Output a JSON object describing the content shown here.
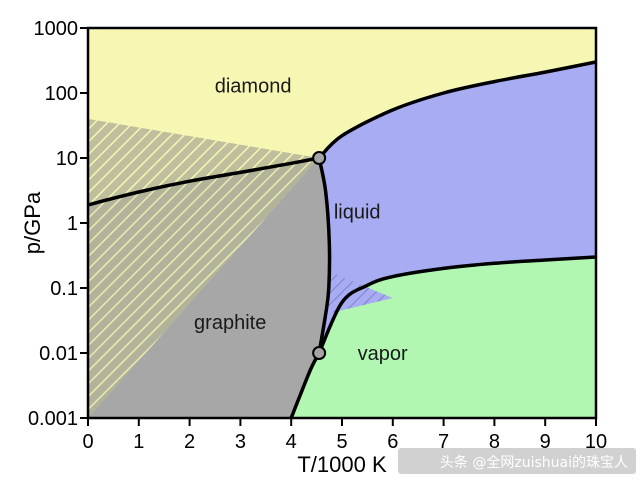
{
  "chart_data": {
    "type": "phase-diagram",
    "title": "",
    "xlabel": "T/1000 K",
    "ylabel": "p/GPa",
    "xlim": [
      0,
      10
    ],
    "ylim": [
      0.001,
      1000
    ],
    "yscale": "log",
    "xticks": [
      0,
      1,
      2,
      3,
      4,
      5,
      6,
      7,
      8,
      9,
      10
    ],
    "yticks": [
      {
        "value": 0.001,
        "label": "0.001"
      },
      {
        "value": 0.01,
        "label": "0.01"
      },
      {
        "value": 0.1,
        "label": "0.1"
      },
      {
        "value": 1,
        "label": "1"
      },
      {
        "value": 10,
        "label": "10"
      },
      {
        "value": 100,
        "label": "100"
      },
      {
        "value": 1000,
        "label": "1000"
      }
    ],
    "grid": false,
    "regions": [
      {
        "name": "diamond",
        "label_at": [
          3.25,
          130
        ],
        "color": "#f6f7b2"
      },
      {
        "name": "liquid",
        "label_at": [
          5.3,
          1.5
        ],
        "color": "#a8acf2"
      },
      {
        "name": "graphite",
        "label_at": [
          2.8,
          0.03
        ],
        "color": "#a7a7a7"
      },
      {
        "name": "vapor",
        "label_at": [
          5.8,
          0.01
        ],
        "color": "#b1f7b1"
      }
    ],
    "triple_points": [
      {
        "x": 4.55,
        "y": 10
      },
      {
        "x": 4.55,
        "y": 0.01
      }
    ],
    "boundaries": {
      "graphite_diamond": [
        [
          0,
          1.9
        ],
        [
          1.0,
          3.0
        ],
        [
          2.0,
          4.4
        ],
        [
          3.0,
          6.0
        ],
        [
          4.0,
          8.3
        ],
        [
          4.55,
          10
        ]
      ],
      "diamond_liquid": [
        [
          4.55,
          10
        ],
        [
          5.0,
          22
        ],
        [
          6.0,
          55
        ],
        [
          7.0,
          100
        ],
        [
          8.0,
          150
        ],
        [
          9.0,
          210
        ],
        [
          10.0,
          300
        ]
      ],
      "graphite_liquid": [
        [
          4.55,
          10
        ],
        [
          4.68,
          3
        ],
        [
          4.75,
          0.5
        ],
        [
          4.74,
          0.1
        ],
        [
          4.68,
          0.04
        ],
        [
          4.55,
          0.01
        ]
      ],
      "liquid_vapor": [
        [
          4.55,
          0.01
        ],
        [
          5.0,
          0.06
        ],
        [
          5.5,
          0.11
        ],
        [
          6.0,
          0.15
        ],
        [
          7.0,
          0.2
        ],
        [
          8.0,
          0.24
        ],
        [
          9.0,
          0.27
        ],
        [
          10.0,
          0.3
        ]
      ],
      "graphite_vapor": [
        [
          4.0,
          0.001
        ],
        [
          4.2,
          0.0025
        ],
        [
          4.4,
          0.006
        ],
        [
          4.55,
          0.01
        ]
      ]
    },
    "metastable_bands": [
      {
        "between": "graphite-diamond",
        "upper": [
          [
            0,
            40
          ],
          [
            4.55,
            10
          ]
        ],
        "lower": [
          [
            0,
            0.001
          ],
          [
            4.55,
            10
          ]
        ]
      },
      {
        "between": "liquid-vapor",
        "upper": [
          [
            4.74,
            0.18
          ],
          [
            6.0,
            0.07
          ]
        ],
        "lower": [
          [
            4.7,
            0.04
          ],
          [
            6.0,
            0.07
          ]
        ]
      }
    ],
    "colors": {
      "diamond": "#f6f7b2",
      "liquid": "#a8acf2",
      "graphite": "#a7a7a7",
      "vapor": "#b1f7b1",
      "boundary": "#000000",
      "triple_point_fill": "#a5a5a5"
    }
  },
  "watermark": "头条 @全网zuishuai的珠宝人"
}
